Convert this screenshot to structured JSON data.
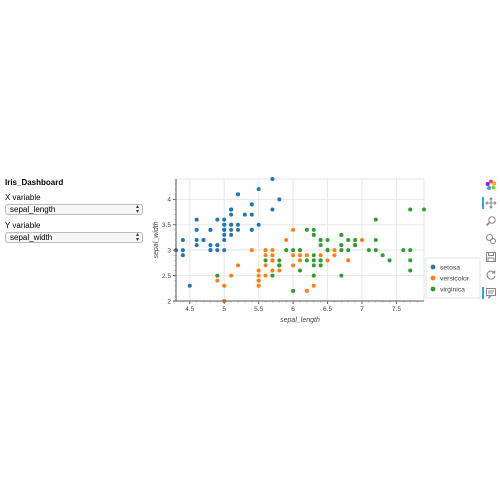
{
  "sidebar": {
    "title": "Iris_Dashboard",
    "x_label": "X variable",
    "x_value": "sepal_length",
    "y_label": "Y variable",
    "y_value": "sepal_width"
  },
  "toolbar": {
    "tools": [
      "bokeh-logo-icon",
      "pan-icon",
      "box-zoom-icon",
      "wheel-zoom-icon",
      "save-icon",
      "reset-icon",
      "hover-icon"
    ]
  },
  "chart_data": {
    "type": "scatter",
    "xlabel": "sepal_length",
    "ylabel": "sepal_width",
    "xlim": [
      4.3,
      7.9
    ],
    "ylim": [
      2.0,
      4.4
    ],
    "xticks": [
      "4.5",
      "5",
      "5.5",
      "6",
      "6.5",
      "7",
      "7.5"
    ],
    "xtick_values": [
      4.5,
      5,
      5.5,
      6,
      6.5,
      7,
      7.5
    ],
    "yticks": [
      "2",
      "2.5",
      "3",
      "3.5",
      "4"
    ],
    "ytick_values": [
      2,
      2.5,
      3,
      3.5,
      4
    ],
    "grid": true,
    "legend_position": "right",
    "series": [
      {
        "name": "setosa",
        "color": "#1f77b4",
        "x": [
          5.1,
          4.9,
          4.7,
          4.6,
          5.0,
          5.4,
          4.6,
          5.0,
          4.4,
          4.9,
          5.4,
          4.8,
          4.8,
          4.3,
          5.8,
          5.7,
          5.4,
          5.1,
          5.7,
          5.1,
          5.4,
          5.1,
          4.6,
          5.1,
          4.8,
          5.0,
          5.0,
          5.2,
          5.2,
          4.7,
          4.8,
          5.4,
          5.2,
          5.5,
          4.9,
          5.0,
          5.5,
          4.9,
          4.4,
          5.1,
          5.0,
          4.5,
          4.4,
          5.0,
          5.1,
          4.8,
          5.1,
          4.6,
          5.3,
          5.0
        ],
        "y": [
          3.5,
          3.0,
          3.2,
          3.1,
          3.6,
          3.9,
          3.4,
          3.4,
          2.9,
          3.1,
          3.7,
          3.4,
          3.0,
          3.0,
          4.0,
          4.4,
          3.9,
          3.5,
          3.8,
          3.8,
          3.4,
          3.7,
          3.6,
          3.3,
          3.4,
          3.0,
          3.4,
          3.5,
          3.4,
          3.2,
          3.1,
          3.4,
          4.1,
          4.2,
          3.1,
          3.2,
          3.5,
          3.6,
          3.0,
          3.4,
          3.5,
          2.3,
          3.2,
          3.5,
          3.8,
          3.0,
          3.8,
          3.2,
          3.7,
          3.3
        ]
      },
      {
        "name": "versicolor",
        "color": "#ff7f0e",
        "x": [
          7.0,
          6.4,
          6.9,
          5.5,
          6.5,
          5.7,
          6.3,
          4.9,
          6.6,
          5.2,
          5.0,
          5.9,
          6.0,
          6.1,
          5.6,
          6.7,
          5.6,
          5.8,
          6.2,
          5.6,
          5.9,
          6.1,
          6.3,
          6.1,
          6.4,
          6.6,
          6.8,
          6.7,
          6.0,
          5.7,
          5.5,
          5.5,
          5.8,
          6.0,
          5.4,
          6.0,
          6.7,
          6.3,
          5.6,
          5.5,
          5.5,
          6.1,
          5.8,
          5.0,
          5.6,
          5.7,
          5.7,
          6.2,
          5.1,
          5.7
        ],
        "y": [
          3.2,
          3.2,
          3.1,
          2.3,
          2.8,
          2.8,
          3.3,
          2.4,
          2.9,
          2.7,
          2.0,
          3.0,
          2.2,
          2.9,
          2.9,
          3.1,
          3.0,
          2.7,
          2.2,
          2.5,
          3.2,
          2.8,
          2.5,
          2.8,
          2.9,
          3.0,
          2.8,
          3.0,
          2.9,
          2.6,
          2.4,
          2.4,
          2.7,
          2.7,
          3.0,
          3.4,
          3.1,
          2.3,
          3.0,
          2.5,
          2.6,
          3.0,
          2.6,
          2.3,
          2.7,
          3.0,
          2.9,
          2.9,
          2.5,
          2.8
        ]
      },
      {
        "name": "virginica",
        "color": "#2ca02c",
        "x": [
          6.3,
          5.8,
          7.1,
          6.3,
          6.5,
          7.6,
          4.9,
          7.3,
          6.7,
          7.2,
          6.5,
          6.4,
          6.8,
          5.7,
          5.8,
          6.4,
          6.5,
          7.7,
          7.7,
          6.0,
          6.9,
          5.6,
          7.7,
          6.3,
          6.7,
          7.2,
          6.2,
          6.1,
          6.4,
          7.2,
          7.4,
          7.9,
          6.4,
          6.3,
          6.1,
          7.7,
          6.3,
          6.4,
          6.0,
          6.9,
          6.7,
          6.9,
          5.8,
          6.8,
          6.7,
          6.7,
          6.3,
          6.5,
          6.2,
          5.9
        ],
        "y": [
          3.3,
          2.7,
          3.0,
          2.9,
          3.0,
          3.0,
          2.5,
          2.9,
          2.5,
          3.6,
          3.2,
          2.7,
          3.0,
          2.5,
          2.8,
          3.2,
          3.0,
          3.8,
          2.6,
          2.2,
          3.2,
          2.8,
          2.8,
          2.7,
          3.3,
          3.2,
          2.8,
          3.0,
          2.8,
          3.0,
          2.8,
          3.8,
          2.8,
          2.8,
          2.6,
          3.0,
          3.4,
          3.1,
          3.0,
          3.1,
          3.1,
          3.1,
          2.7,
          3.2,
          3.3,
          3.0,
          2.5,
          3.0,
          3.4,
          3.0
        ]
      }
    ]
  }
}
